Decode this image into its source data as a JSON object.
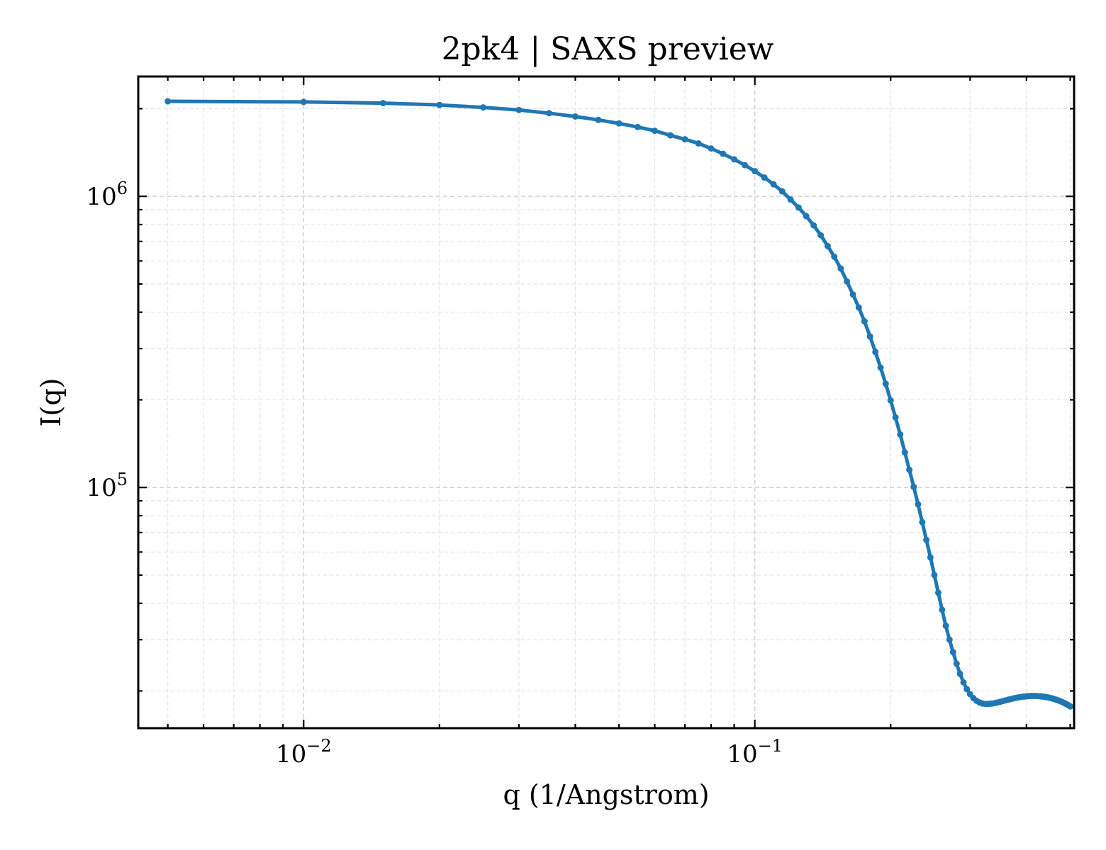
{
  "chart_data": {
    "type": "line",
    "title": "2pk4 | SAXS preview",
    "xlabel": "q (1/Angstrom)",
    "ylabel": "I(q)",
    "xscale": "log",
    "yscale": "log",
    "xlim": [
      0.0043,
      0.51
    ],
    "ylim": [
      14900,
      2580000
    ],
    "grid": true,
    "x_ticks": [
      {
        "value": 0.01,
        "base": "10",
        "exp": "−2"
      },
      {
        "value": 0.1,
        "base": "10",
        "exp": "−1"
      }
    ],
    "y_ticks": [
      {
        "value": 100000,
        "base": "10",
        "exp": "5"
      },
      {
        "value": 1000000,
        "base": "10",
        "exp": "6"
      }
    ],
    "color": "#1f77b4",
    "x": [
      0.005,
      0.01,
      0.015,
      0.02,
      0.025,
      0.03,
      0.035,
      0.04,
      0.045,
      0.05,
      0.055,
      0.06,
      0.065,
      0.07,
      0.075,
      0.08,
      0.085,
      0.09,
      0.095,
      0.1,
      0.105,
      0.11,
      0.115,
      0.12,
      0.125,
      0.13,
      0.135,
      0.14,
      0.145,
      0.15,
      0.155,
      0.16,
      0.165,
      0.17,
      0.175,
      0.18,
      0.185,
      0.19,
      0.195,
      0.2,
      0.205,
      0.21,
      0.215,
      0.22,
      0.225,
      0.23,
      0.235,
      0.24,
      0.245,
      0.25,
      0.255,
      0.26,
      0.265,
      0.27,
      0.275,
      0.28,
      0.285,
      0.29,
      0.295,
      0.3,
      0.305,
      0.31,
      0.315,
      0.32,
      0.325,
      0.33,
      0.335,
      0.34,
      0.345,
      0.35,
      0.355,
      0.36,
      0.365,
      0.37,
      0.375,
      0.38,
      0.385,
      0.39,
      0.395,
      0.4,
      0.405,
      0.41,
      0.415,
      0.42,
      0.425,
      0.43,
      0.435,
      0.44,
      0.445,
      0.45,
      0.455,
      0.46,
      0.465,
      0.47,
      0.475,
      0.48,
      0.485,
      0.49,
      0.495,
      0.5
    ],
    "y": [
      2120000,
      2110000,
      2090000,
      2060000,
      2020000,
      1980000,
      1930000,
      1880000,
      1830000,
      1780000,
      1730000,
      1680000,
      1620000,
      1570000,
      1520000,
      1460000,
      1400000,
      1340000,
      1280000,
      1220000,
      1160000,
      1100000,
      1040000,
      975000,
      915000,
      855000,
      795000,
      735000,
      675000,
      620000,
      565000,
      510000,
      460000,
      415000,
      372000,
      330000,
      292000,
      258000,
      227000,
      199000,
      174000,
      152000,
      132000,
      115000,
      100500,
      87500,
      76000,
      66000,
      57500,
      50000,
      43500,
      38000,
      33500,
      30000,
      27200,
      24800,
      22900,
      21400,
      20300,
      19500,
      18900,
      18500,
      18250,
      18100,
      18050,
      18060,
      18100,
      18170,
      18260,
      18360,
      18470,
      18580,
      18680,
      18780,
      18870,
      18950,
      19020,
      19080,
      19130,
      19170,
      19200,
      19220,
      19230,
      19220,
      19200,
      19170,
      19130,
      19080,
      19020,
      18950,
      18870,
      18780,
      18680,
      18570,
      18450,
      18320,
      18180,
      18030,
      17870,
      17700
    ]
  }
}
